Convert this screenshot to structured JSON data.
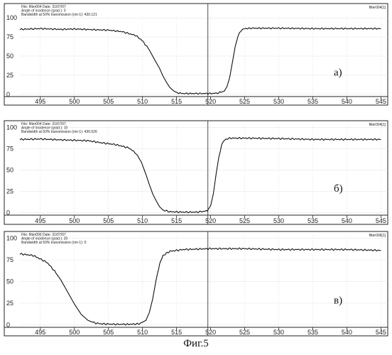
{
  "figure": {
    "caption": "Фиг.5"
  },
  "chart_data": [
    {
      "type": "line",
      "panel_label": "а)",
      "file_tag": "filter004[1]",
      "header_lines": [
        "File: filter004   Date: 31/07/07",
        "Angle of incidence (grad.): 0",
        "Bandwidth at 50% transmission (nm-1): 430.121"
      ],
      "xlim": [
        492,
        546
      ],
      "ylim": [
        -3,
        103
      ],
      "x_ticks": [
        495,
        500,
        505,
        510,
        515,
        520,
        525,
        530,
        535,
        540,
        545
      ],
      "y_ticks": [
        0,
        25,
        50,
        75,
        100
      ],
      "cursor_x": 519.6,
      "series": [
        {
          "x": [
            492,
            495,
            498,
            500,
            503,
            505,
            507,
            509,
            510,
            511,
            511.8,
            512.5,
            513,
            513.5,
            514,
            514.5,
            515,
            516,
            518,
            520,
            521,
            522,
            522.4,
            522.8,
            523.2,
            523.6,
            524,
            524.5,
            525,
            526,
            530,
            535,
            540,
            545
          ],
          "y": [
            85,
            86,
            85,
            85.5,
            84.5,
            84,
            82,
            77,
            70,
            58,
            45,
            34,
            24,
            16,
            9,
            5,
            2,
            1,
            1,
            1,
            1.5,
            4,
            10,
            22,
            42,
            62,
            76,
            84,
            86,
            86.5,
            86.5,
            86,
            86,
            86
          ]
        }
      ]
    },
    {
      "type": "line",
      "panel_label": "б)",
      "file_tag": "filter004[1]",
      "header_lines": [
        "File: filter004   Date: 31/07/07",
        "Angle of incidence (grad.): 10",
        "Bandwidth at 50% transmission (nm-1): 430.526"
      ],
      "xlim": [
        492,
        546
      ],
      "ylim": [
        -3,
        103
      ],
      "x_ticks": [
        495,
        500,
        505,
        510,
        515,
        520,
        525,
        530,
        535,
        540,
        545
      ],
      "y_ticks": [
        0,
        25,
        50,
        75,
        100
      ],
      "cursor_x": 519.6,
      "series": [
        {
          "x": [
            492,
            495,
            498,
            500,
            502,
            504,
            506,
            508,
            509,
            509.8,
            510.5,
            511,
            511.5,
            512,
            512.5,
            513,
            514,
            516,
            518,
            519.5,
            520,
            520.4,
            520.8,
            521.2,
            521.6,
            522,
            522.5,
            523,
            525,
            530,
            535,
            540,
            545
          ],
          "y": [
            86,
            86.5,
            85.5,
            85,
            84.5,
            82,
            80,
            76,
            70,
            60,
            45,
            33,
            22,
            14,
            7,
            3,
            1,
            0.5,
            0.5,
            2,
            8,
            22,
            45,
            65,
            79,
            85,
            87,
            87.5,
            87.5,
            87,
            86,
            86,
            86
          ]
        }
      ]
    },
    {
      "type": "line",
      "panel_label": "в)",
      "file_tag": "filter006[1]",
      "header_lines": [
        "File: filter006   Date: 31/07/07",
        "Angle of incidence (grad.): 20",
        "Bandwidth at 50% transmission (nm-1): 0"
      ],
      "xlim": [
        492,
        546
      ],
      "ylim": [
        -3,
        103
      ],
      "x_ticks": [
        495,
        500,
        505,
        510,
        515,
        520,
        525,
        530,
        535,
        540,
        545
      ],
      "y_ticks": [
        0,
        25,
        50,
        75,
        100
      ],
      "cursor_x": 519.6,
      "series": [
        {
          "x": [
            492,
            494,
            495,
            496,
            497,
            498,
            499,
            500,
            501,
            502,
            503,
            504,
            506,
            508,
            509.5,
            510.5,
            511,
            511.5,
            512,
            512.5,
            513,
            514,
            516,
            520,
            525,
            530,
            535,
            540,
            545
          ],
          "y": [
            82,
            80,
            76,
            72,
            63,
            52,
            38,
            24,
            12,
            5,
            2,
            1,
            0.5,
            0.5,
            1,
            5,
            14,
            30,
            52,
            70,
            80,
            85,
            87,
            88,
            88,
            87,
            87,
            87,
            86
          ]
        }
      ]
    }
  ]
}
